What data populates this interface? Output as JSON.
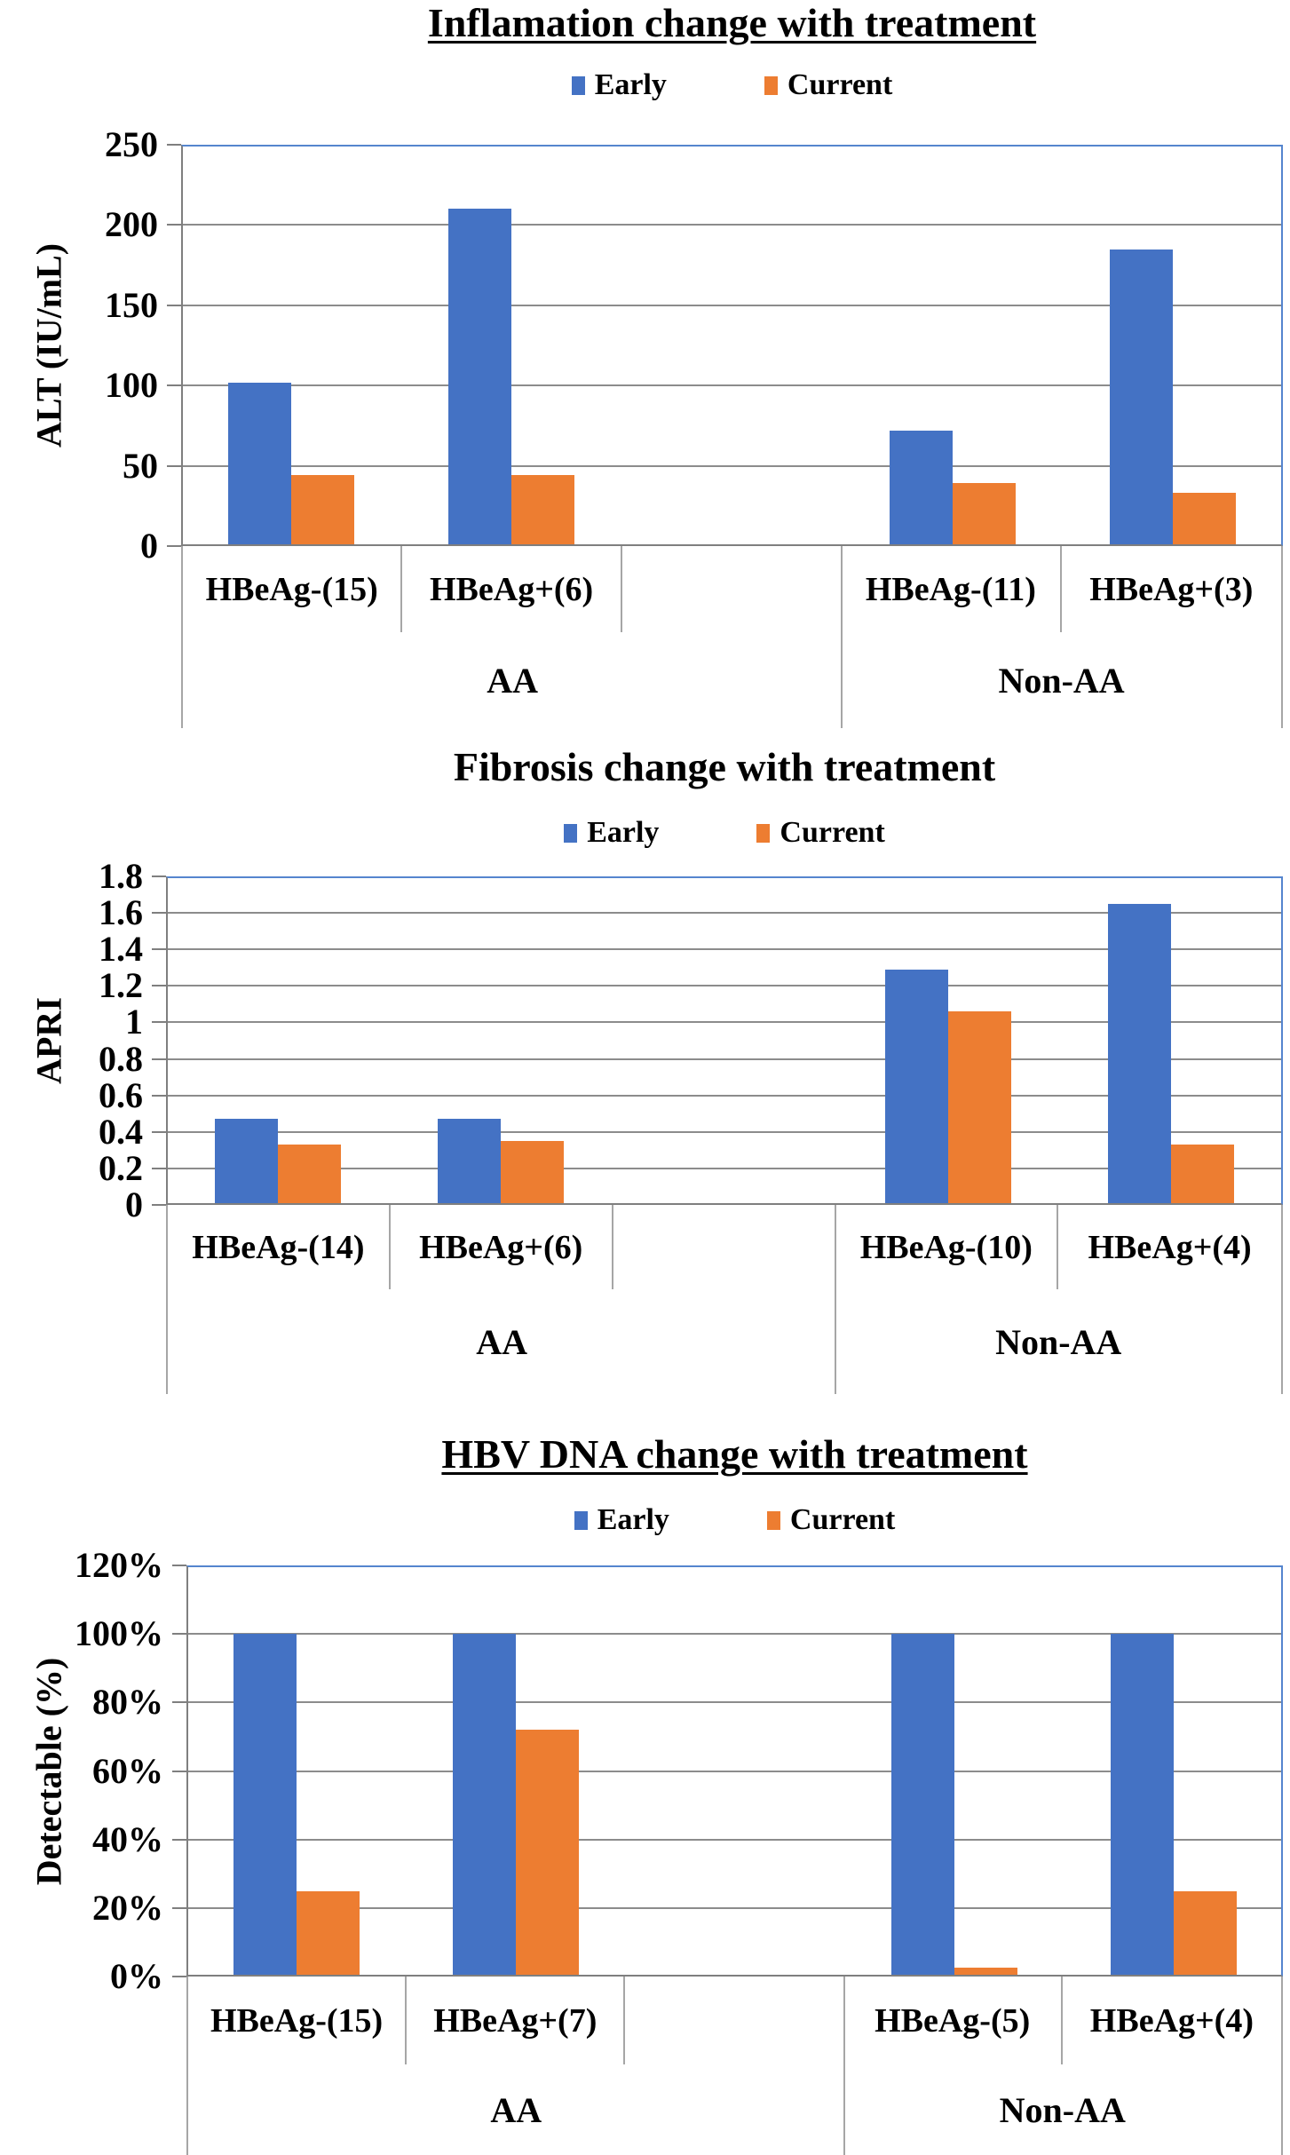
{
  "page": {
    "background": "#ffffff"
  },
  "colors": {
    "early": "#4472C4",
    "current": "#ED7D31",
    "gridline": "#8C8C8C",
    "axis": "#7F7F7F",
    "plot_border": "#5585CE",
    "table_line": "#A6A6A6",
    "text": "#000000"
  },
  "legend": {
    "early": "Early",
    "current": "Current"
  },
  "chart_data": [
    {
      "type": "bar",
      "title": "Inflamation change with treatment",
      "title_underlined": true,
      "ylabel": "ALT (IU/mL)",
      "ylim": [
        0,
        250
      ],
      "ytick_labels": [
        "0",
        "50",
        "100",
        "150",
        "200",
        "250"
      ],
      "grid": true,
      "legend_position": "top",
      "categories": [
        "HBeAg-(15)",
        "HBeAg+(6)",
        "",
        "HBeAg-(11)",
        "HBeAg+(3)"
      ],
      "groups": [
        {
          "label": "AA",
          "span": 3
        },
        {
          "label": "Non-AA",
          "span": 2
        }
      ],
      "series": [
        {
          "name": "Early",
          "values": [
            102,
            210,
            null,
            72,
            185
          ]
        },
        {
          "name": "Current",
          "values": [
            44,
            44,
            null,
            39,
            33
          ]
        }
      ]
    },
    {
      "type": "bar",
      "title": "Fibrosis change with treatment",
      "title_underlined": false,
      "ylabel": "APRI",
      "ylim": [
        0,
        1.8
      ],
      "ytick_labels": [
        "0",
        "0.2",
        "0.4",
        "0.6",
        "0.8",
        "1",
        "1.2",
        "1.4",
        "1.6",
        "1.8"
      ],
      "grid": true,
      "legend_position": "top",
      "categories": [
        "HBeAg-(14)",
        "HBeAg+(6)",
        "",
        "HBeAg-(10)",
        "HBeAg+(4)"
      ],
      "groups": [
        {
          "label": "AA",
          "span": 3
        },
        {
          "label": "Non-AA",
          "span": 2
        }
      ],
      "series": [
        {
          "name": "Early",
          "values": [
            0.47,
            0.47,
            null,
            1.29,
            1.65
          ]
        },
        {
          "name": "Current",
          "values": [
            0.33,
            0.35,
            null,
            1.06,
            0.33
          ]
        }
      ]
    },
    {
      "type": "bar",
      "title": "HBV DNA change with treatment",
      "title_underlined": true,
      "ylabel": "Detectable (%)",
      "ylim": [
        0,
        120
      ],
      "ytick_labels": [
        "0%",
        "20%",
        "40%",
        "60%",
        "80%",
        "100%",
        "120%"
      ],
      "grid": true,
      "legend_position": "top",
      "categories": [
        "HBeAg-(15)",
        "HBeAg+(7)",
        "",
        "HBeAg-(5)",
        "HBeAg+(4)"
      ],
      "groups": [
        {
          "label": "AA",
          "span": 3
        },
        {
          "label": "Non-AA",
          "span": 2
        }
      ],
      "series": [
        {
          "name": "Early",
          "values": [
            100,
            100,
            null,
            100,
            100
          ]
        },
        {
          "name": "Current",
          "values": [
            25,
            72,
            null,
            2.5,
            25
          ]
        }
      ]
    }
  ]
}
